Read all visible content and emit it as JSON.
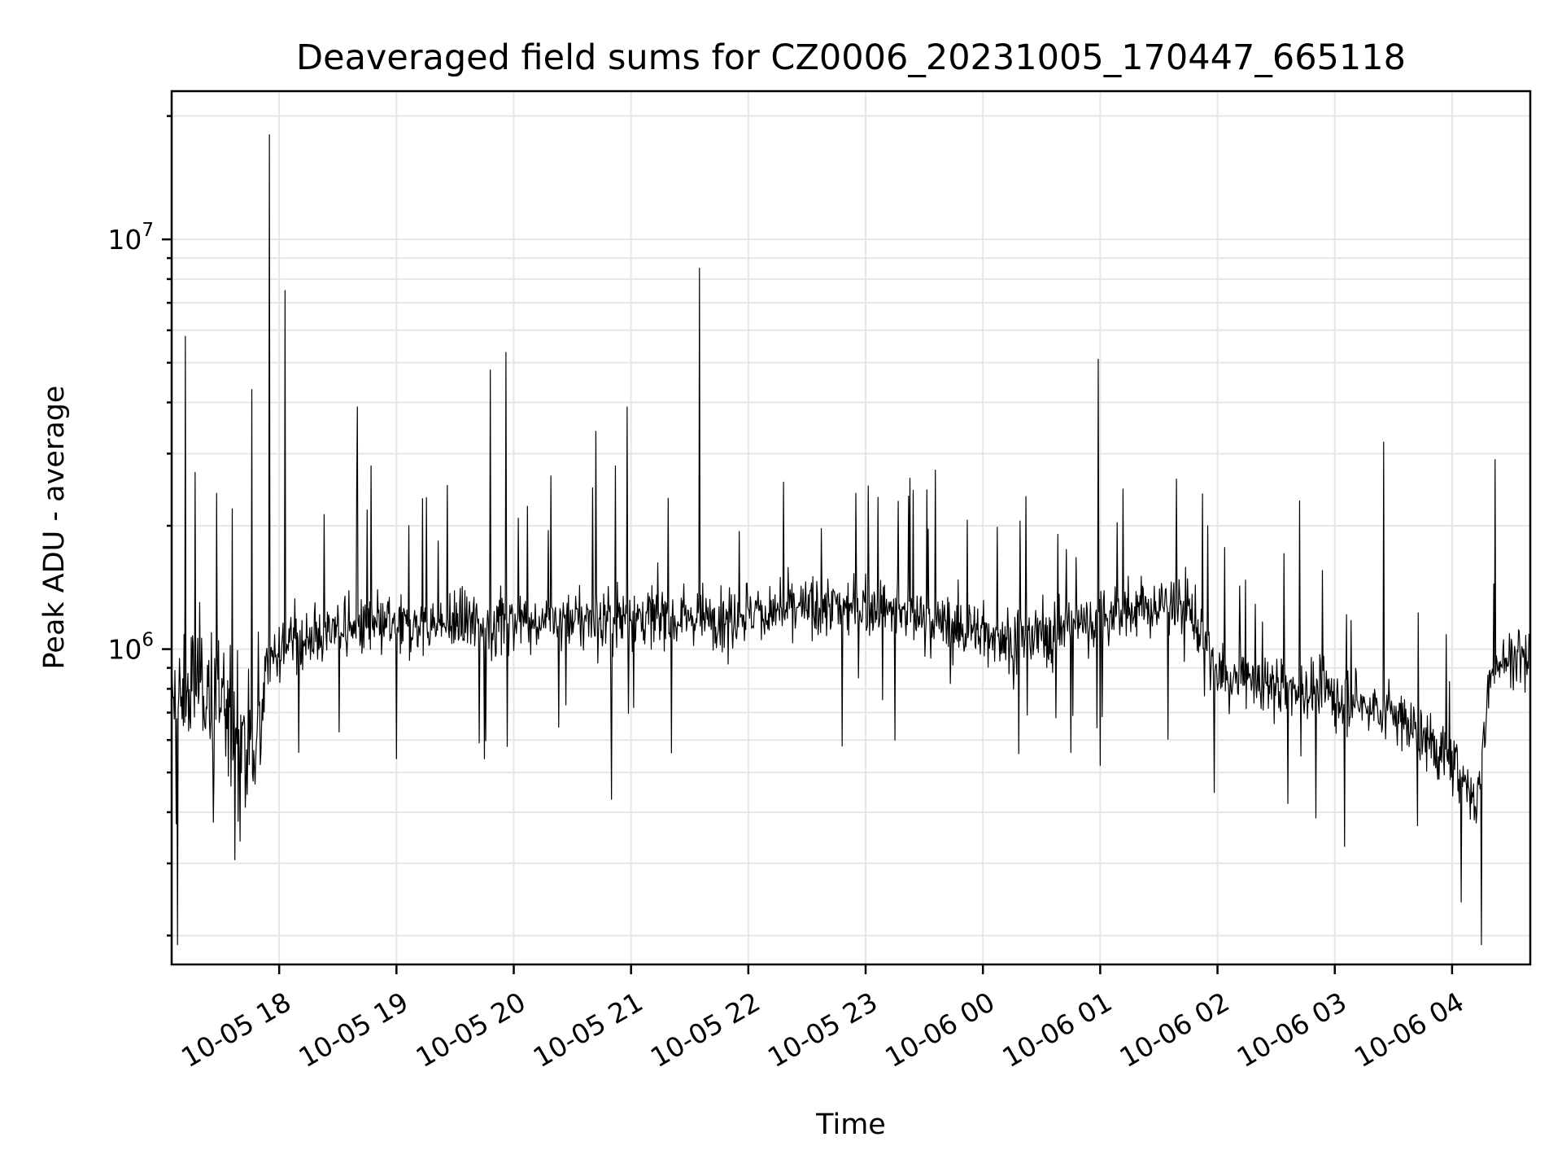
{
  "chart_data": {
    "type": "line",
    "title": "Deaveraged field sums for CZ0006_20231005_170447_665118",
    "xlabel": "Time",
    "ylabel": "Peak ADU - average",
    "yscale": "log",
    "grid": true,
    "xlim": [
      "2023-10-05 17:05",
      "2023-10-06 04:40"
    ],
    "ylim": [
      170000,
      23000000
    ],
    "x_ticks": [
      "10-05 18",
      "10-05 19",
      "10-05 20",
      "10-05 21",
      "10-05 22",
      "10-05 23",
      "10-06 00",
      "10-06 01",
      "10-06 02",
      "10-06 03",
      "10-06 04"
    ],
    "x_tick_values": [
      "2023-10-05 18:00",
      "2023-10-05 19:00",
      "2023-10-05 20:00",
      "2023-10-05 21:00",
      "2023-10-05 22:00",
      "2023-10-05 23:00",
      "2023-10-06 00:00",
      "2023-10-06 01:00",
      "2023-10-06 02:00",
      "2023-10-06 03:00",
      "2023-10-06 04:00"
    ],
    "y_tick_base": "10",
    "y_tick_exponents": [
      "6",
      "7"
    ],
    "y_tick_values": [
      1000000,
      10000000
    ],
    "series": [
      {
        "color": "#000000",
        "baseline": [
          [
            "2023-10-05 17:05",
            700000
          ],
          [
            "2023-10-05 17:20",
            850000
          ],
          [
            "2023-10-05 17:35",
            680000
          ],
          [
            "2023-10-05 17:48",
            520000
          ],
          [
            "2023-10-05 17:55",
            1000000
          ],
          [
            "2023-10-05 18:30",
            1120000
          ],
          [
            "2023-10-05 19:30",
            1150000
          ],
          [
            "2023-10-05 20:30",
            1180000
          ],
          [
            "2023-10-05 21:30",
            1200000
          ],
          [
            "2023-10-05 22:30",
            1250000
          ],
          [
            "2023-10-05 23:00",
            1280000
          ],
          [
            "2023-10-05 23:40",
            1150000
          ],
          [
            "2023-10-06 00:20",
            1050000
          ],
          [
            "2023-10-06 01:00",
            1200000
          ],
          [
            "2023-10-06 01:45",
            1300000
          ],
          [
            "2023-10-06 02:00",
            850000
          ],
          [
            "2023-10-06 02:45",
            800000
          ],
          [
            "2023-10-06 03:30",
            700000
          ],
          [
            "2023-10-06 03:55",
            550000
          ],
          [
            "2023-10-06 04:13",
            430000
          ],
          [
            "2023-10-06 04:20",
            900000
          ],
          [
            "2023-10-06 04:40",
            1000000
          ]
        ],
        "spikes": [
          [
            "2023-10-05 17:12",
            5800000
          ],
          [
            "2023-10-05 17:17",
            2700000
          ],
          [
            "2023-10-05 17:28",
            2400000
          ],
          [
            "2023-10-05 17:36",
            2200000
          ],
          [
            "2023-10-05 17:46",
            4300000
          ],
          [
            "2023-10-05 17:55",
            18000000
          ],
          [
            "2023-10-05 18:03",
            7500000
          ],
          [
            "2023-10-05 18:40",
            3900000
          ],
          [
            "2023-10-05 18:47",
            2800000
          ],
          [
            "2023-10-05 19:48",
            4800000
          ],
          [
            "2023-10-05 19:56",
            5300000
          ],
          [
            "2023-10-05 20:42",
            3400000
          ],
          [
            "2023-10-05 20:52",
            2800000
          ],
          [
            "2023-10-05 20:58",
            3900000
          ],
          [
            "2023-10-05 21:35",
            8500000
          ],
          [
            "2023-10-05 22:55",
            2400000
          ],
          [
            "2023-10-06 00:59",
            5100000
          ],
          [
            "2023-10-06 01:55",
            2000000
          ],
          [
            "2023-10-06 02:42",
            2300000
          ],
          [
            "2023-10-06 03:25",
            3200000
          ],
          [
            "2023-10-06 04:22",
            2900000
          ]
        ],
        "dips": [
          [
            "2023-10-05 17:08",
            190000
          ],
          [
            "2023-10-05 17:40",
            340000
          ],
          [
            "2023-10-05 18:10",
            560000
          ],
          [
            "2023-10-05 19:00",
            540000
          ],
          [
            "2023-10-05 19:45",
            540000
          ],
          [
            "2023-10-05 20:50",
            430000
          ],
          [
            "2023-10-05 22:48",
            580000
          ],
          [
            "2023-10-05 23:15",
            600000
          ],
          [
            "2023-10-06 00:45",
            560000
          ],
          [
            "2023-10-06 01:00",
            520000
          ],
          [
            "2023-10-06 02:36",
            420000
          ],
          [
            "2023-10-06 03:05",
            330000
          ],
          [
            "2023-10-06 04:15",
            190000
          ]
        ]
      }
    ]
  }
}
